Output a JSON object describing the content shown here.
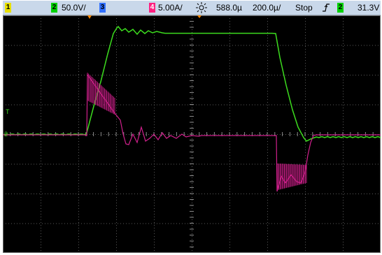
{
  "statusbar": {
    "ch1_num": "1",
    "ch2_num": "2",
    "ch2_scale": "50.0V/",
    "ch3_num": "3",
    "ch4_num": "4",
    "ch4_scale": "5.00A/",
    "delay": "588.0µ",
    "timebase": "200.0µ/",
    "run_state": "Stop",
    "trigger_source_num": "2",
    "trigger_level": "31.3V"
  },
  "colors": {
    "ch1": "#e8e000",
    "ch2": "#00d000",
    "ch3": "#3070ff",
    "ch4": "#ff2080",
    "trace_voltage": "#3cdc1e",
    "trace_current": "#d0208c",
    "grid": "#5a5a5a"
  },
  "markers": {
    "trigger_level_marker": "T",
    "ch2_ground_marker": "2"
  },
  "icons": {
    "acquisition_icon": "sun-icon",
    "trigger_slope_icon": "rising-edge-icon"
  }
}
